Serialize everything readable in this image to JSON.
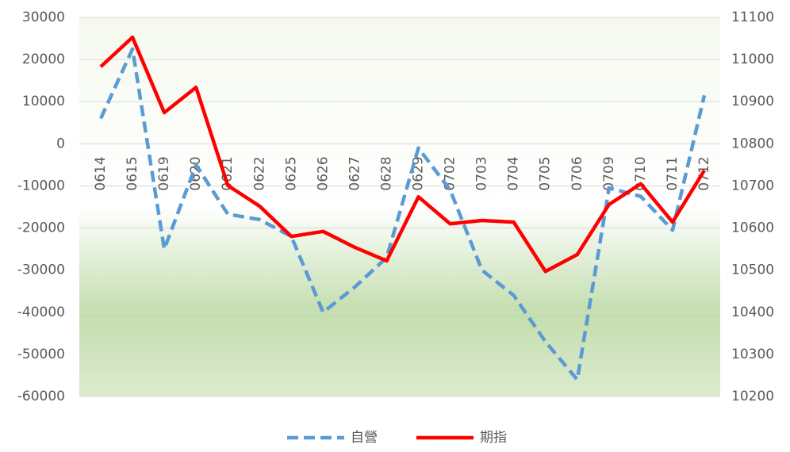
{
  "chart_data": {
    "type": "line",
    "categories": [
      "0614",
      "0615",
      "0619",
      "0620",
      "0621",
      "0622",
      "0625",
      "0626",
      "0627",
      "0628",
      "0629",
      "0702",
      "0703",
      "0704",
      "0705",
      "0706",
      "0709",
      "0710",
      "0711",
      "0712"
    ],
    "series": [
      {
        "name": "自營",
        "color": "#5b9bd5",
        "dashed": true,
        "values": [
          6000,
          22500,
          -25000,
          -5000,
          -16700,
          -18000,
          -22000,
          -40000,
          -34000,
          -27000,
          -1000,
          -11000,
          -30000,
          -36000,
          -47000,
          -56000,
          -10500,
          -12500,
          -20500,
          11500
        ]
      },
      {
        "name": "期指",
        "color": "#ff0000",
        "axis": "y2",
        "values": [
          10983,
          11053,
          10874,
          10934,
          10701,
          10652,
          10580,
          10592,
          10554,
          10522,
          10674,
          10610,
          10618,
          10614,
          10497,
          10537,
          10656,
          10705,
          10614,
          10737
        ]
      }
    ],
    "ylim": [
      -60000,
      30000
    ],
    "yticks": [
      -60000,
      -50000,
      -40000,
      -30000,
      -20000,
      -10000,
      0,
      10000,
      20000,
      30000
    ],
    "y2lim": [
      10200,
      11100
    ],
    "y2ticks": [
      10200,
      10300,
      10400,
      10500,
      10600,
      10700,
      10800,
      10900,
      11000,
      11100
    ],
    "grid": true,
    "legend": "bottom"
  }
}
